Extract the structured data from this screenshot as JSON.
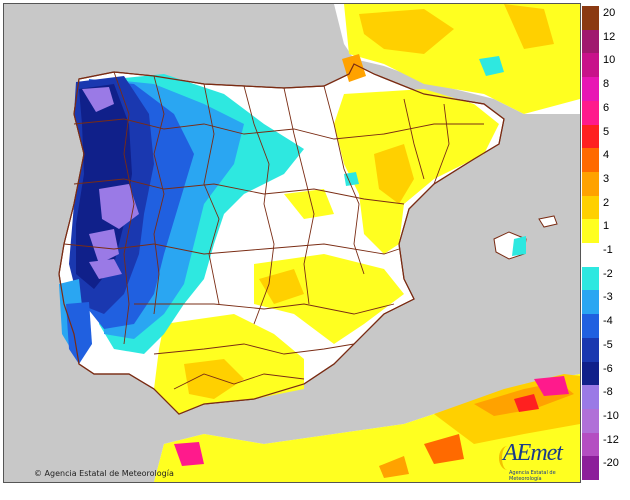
{
  "map": {
    "copyright": "Agencia Estatal de Meteorología",
    "logo": {
      "brand": "AEmet",
      "sub": "Agencia Estatal de Meteorología"
    }
  },
  "legend": {
    "entries": [
      {
        "label": "20",
        "color": "#8b3a12"
      },
      {
        "label": "12",
        "color": "#a0196e"
      },
      {
        "label": "10",
        "color": "#c8128a"
      },
      {
        "label": "8",
        "color": "#e816b4"
      },
      {
        "label": "6",
        "color": "#ff1a8c"
      },
      {
        "label": "5",
        "color": "#ff2020"
      },
      {
        "label": "4",
        "color": "#ff6a00"
      },
      {
        "label": "3",
        "color": "#ffa200"
      },
      {
        "label": "2",
        "color": "#ffd000"
      },
      {
        "label": "1",
        "color": "#ffff20"
      },
      {
        "label": "-1",
        "color": "#ffffff"
      },
      {
        "label": "-2",
        "color": "#2ee8e0"
      },
      {
        "label": "-3",
        "color": "#2aa6f2"
      },
      {
        "label": "-4",
        "color": "#2060e0"
      },
      {
        "label": "-5",
        "color": "#1a38b0"
      },
      {
        "label": "-6",
        "color": "#10208a"
      },
      {
        "label": "-8",
        "color": "#9a7ae6"
      },
      {
        "label": "-10",
        "color": "#b070d8"
      },
      {
        "label": "-12",
        "color": "#b44ec2"
      },
      {
        "label": "-20",
        "color": "#8c1e9a"
      }
    ]
  },
  "colors": {
    "sea": "#c8c8c8",
    "land_neutral": "#ffffff",
    "border": "#7a2c14"
  }
}
